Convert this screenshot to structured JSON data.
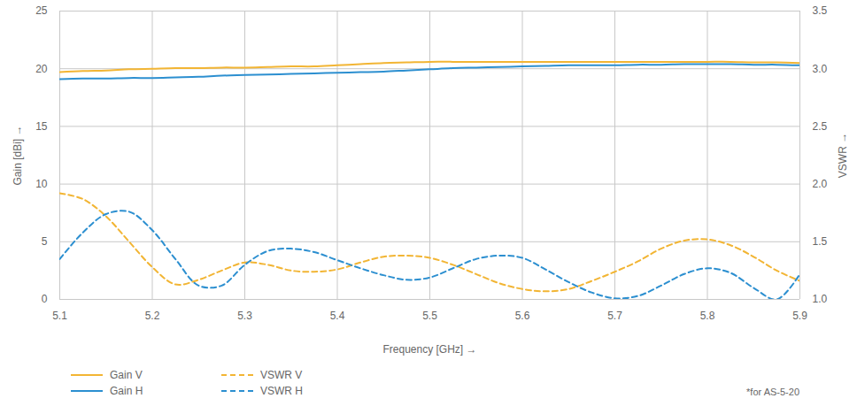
{
  "chart_data": {
    "type": "line",
    "x": [
      5.1,
      5.125,
      5.15,
      5.175,
      5.2,
      5.225,
      5.25,
      5.275,
      5.3,
      5.325,
      5.35,
      5.375,
      5.4,
      5.425,
      5.45,
      5.475,
      5.5,
      5.525,
      5.55,
      5.575,
      5.6,
      5.625,
      5.65,
      5.675,
      5.7,
      5.725,
      5.75,
      5.775,
      5.8,
      5.825,
      5.85,
      5.875,
      5.9
    ],
    "xlim": [
      5.1,
      5.9
    ],
    "xticks": [
      5.1,
      5.2,
      5.3,
      5.4,
      5.5,
      5.6,
      5.7,
      5.8,
      5.9
    ],
    "xlabel": "Frequency [GHz]",
    "ylim": [
      0,
      25
    ],
    "yticks": [
      0,
      5,
      10,
      15,
      20,
      25
    ],
    "ylabel": "Gain [dBi]",
    "y2lim": [
      1,
      3.5
    ],
    "y2ticks": [
      {
        "value": 1,
        "label": "1.0"
      },
      {
        "value": 1.5,
        "label": "1.5"
      },
      {
        "value": 2,
        "label": "2.0"
      },
      {
        "value": 2.5,
        "label": "2.5"
      },
      {
        "value": 3,
        "label": "3.0"
      },
      {
        "value": 3.5,
        "label": "3.5"
      }
    ],
    "y2label": "VSWR",
    "grid": true,
    "legend": "bottom",
    "caption": "*for AS-5-20",
    "series": [
      {
        "name": "Gain V",
        "color": "#f2b534",
        "line_style": "solid",
        "values": [
          19.7,
          19.8,
          19.85,
          19.95,
          20.0,
          20.05,
          20.05,
          20.1,
          20.1,
          20.15,
          20.2,
          20.2,
          20.3,
          20.4,
          20.5,
          20.55,
          20.6,
          20.6,
          20.6,
          20.6,
          20.6,
          20.6,
          20.6,
          20.6,
          20.6,
          20.6,
          20.6,
          20.6,
          20.6,
          20.6,
          20.55,
          20.55,
          20.5
        ]
      },
      {
        "name": "Gain H",
        "color": "#2c8fd0",
        "line_style": "solid",
        "values": [
          19.1,
          19.15,
          19.15,
          19.2,
          19.2,
          19.25,
          19.3,
          19.4,
          19.45,
          19.5,
          19.55,
          19.6,
          19.65,
          19.7,
          19.75,
          19.85,
          19.95,
          20.05,
          20.1,
          20.15,
          20.2,
          20.25,
          20.3,
          20.3,
          20.3,
          20.35,
          20.35,
          20.4,
          20.4,
          20.4,
          20.35,
          20.35,
          20.3
        ]
      },
      {
        "name": "VSWR V",
        "color": "#f2b534",
        "line_style": "dashed",
        "axis": "y2",
        "values": [
          1.92,
          1.87,
          1.72,
          1.5,
          1.28,
          1.13,
          1.17,
          1.25,
          1.32,
          1.3,
          1.25,
          1.24,
          1.26,
          1.32,
          1.37,
          1.38,
          1.36,
          1.3,
          1.22,
          1.14,
          1.09,
          1.07,
          1.09,
          1.16,
          1.24,
          1.33,
          1.44,
          1.51,
          1.52,
          1.47,
          1.37,
          1.25,
          1.16
        ]
      },
      {
        "name": "VSWR H",
        "color": "#2c8fd0",
        "line_style": "dashed",
        "axis": "y2",
        "values": [
          1.35,
          1.58,
          1.74,
          1.76,
          1.6,
          1.35,
          1.12,
          1.12,
          1.3,
          1.42,
          1.44,
          1.41,
          1.34,
          1.27,
          1.21,
          1.17,
          1.19,
          1.27,
          1.35,
          1.38,
          1.36,
          1.26,
          1.15,
          1.06,
          1.01,
          1.03,
          1.12,
          1.22,
          1.27,
          1.23,
          1.1,
          1.0,
          1.22
        ]
      }
    ]
  }
}
